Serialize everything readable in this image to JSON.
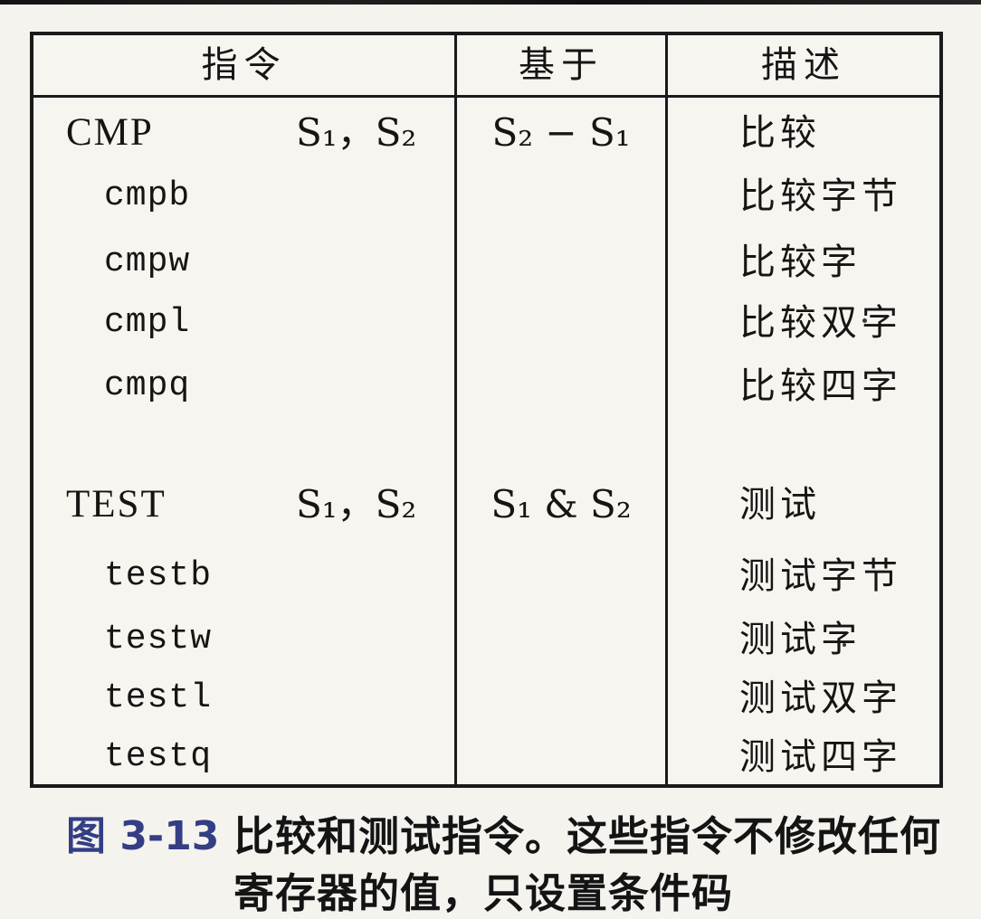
{
  "figure": {
    "table": {
      "headers": {
        "instruction": "指令",
        "based_on": "基于",
        "description": "描述"
      },
      "rows": [
        {
          "instruction": "CMP",
          "operands": "S₁，S₂",
          "based_on": "S₂ − S₁",
          "description": "比较"
        },
        {
          "instruction": "cmpb",
          "description": "比较字节"
        },
        {
          "instruction": "cmpw",
          "description": "比较字"
        },
        {
          "instruction": "cmpl",
          "description": "比较双字"
        },
        {
          "instruction": "cmpq",
          "description": "比较四字"
        },
        {
          "instruction": "TEST",
          "operands": "S₁，S₂",
          "based_on": "S₁ & S₂",
          "description": "测试"
        },
        {
          "instruction": "testb",
          "description": "测试字节"
        },
        {
          "instruction": "testw",
          "description": "测试字"
        },
        {
          "instruction": "testl",
          "description": "测试双字"
        },
        {
          "instruction": "testq",
          "description": "测试四字"
        }
      ]
    },
    "caption": {
      "label": "图 3-13",
      "line1": "比较和测试指令。这些指令不修改任何",
      "line2": "寄存器的值，只设置条件码"
    },
    "colors": {
      "caption_label": "#333e85",
      "ink": "#161514",
      "border": "#1a1a1a",
      "background": "#f5f3ee"
    }
  }
}
